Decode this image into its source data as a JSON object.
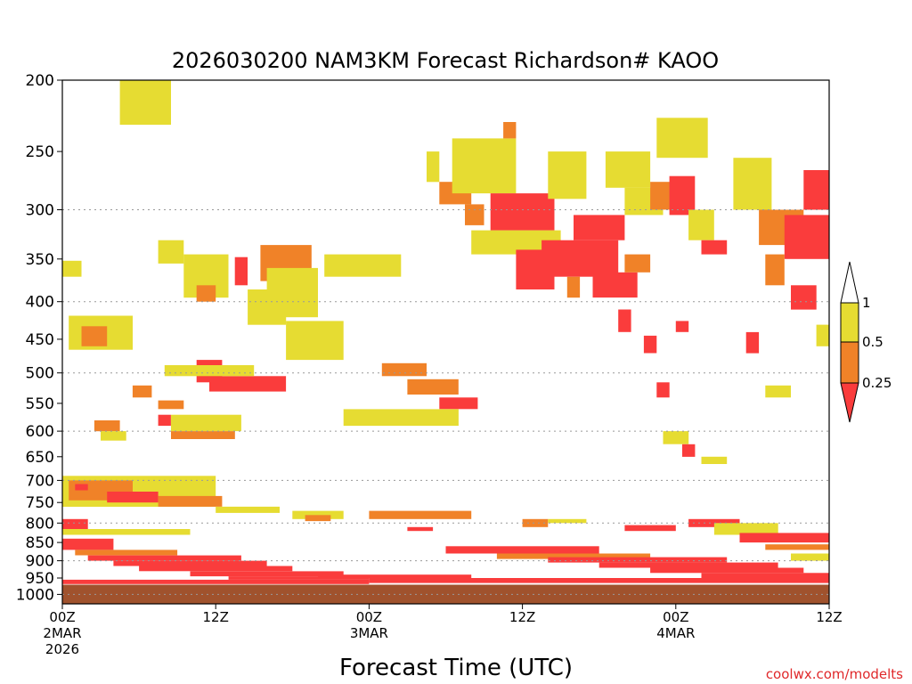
{
  "chart_data": {
    "type": "heatmap",
    "title": "2026030200 NAM3KM Forecast Richardson# KAOO",
    "xlabel": "Forecast Time (UTC)",
    "credit": "coolwx.com/modelts",
    "y_axis": {
      "scale": "log",
      "range": [
        1030,
        200
      ],
      "ticks": [
        "200",
        "250",
        "300",
        "350",
        "400",
        "450",
        "500",
        "550",
        "600",
        "650",
        "700",
        "750",
        "800",
        "850",
        "900",
        "950",
        "1000"
      ],
      "gridlines": [
        300,
        400,
        500,
        600,
        700,
        800,
        900,
        1000
      ]
    },
    "x_axis": {
      "range_hours": [
        0,
        60
      ],
      "ticks": [
        {
          "h": 0,
          "lines": [
            "00Z",
            "2MAR",
            "2026"
          ]
        },
        {
          "h": 12,
          "lines": [
            "12Z"
          ]
        },
        {
          "h": 24,
          "lines": [
            "00Z",
            "3MAR"
          ]
        },
        {
          "h": 36,
          "lines": [
            "12Z"
          ]
        },
        {
          "h": 48,
          "lines": [
            "00Z",
            "4MAR"
          ]
        },
        {
          "h": 60,
          "lines": [
            "12Z"
          ]
        }
      ]
    },
    "legend": {
      "placement": "right",
      "labels": [
        "1",
        "0.5",
        "0.25"
      ],
      "bins": [
        {
          "range": "0.5-1",
          "color": "#e6dc32"
        },
        {
          "range": "0.25-0.5",
          "color": "#f08228"
        },
        {
          "range": "<0.25",
          "color": "#fa3c3c"
        }
      ]
    },
    "colors": {
      "ge1": "#ffffff",
      "y": "#e6dc32",
      "o": "#f08228",
      "r": "#fa3c3c",
      "ground": "#a0522d"
    },
    "surface_pressure": 970,
    "cells_note": "cells: [hour_start, hour_end, p_top, p_bottom, class] — approximate representative regions",
    "cells": [
      [
        4.5,
        8.5,
        200,
        230,
        "y"
      ],
      [
        0,
        1.5,
        352,
        370,
        "y"
      ],
      [
        0.5,
        5.5,
        418,
        465,
        "y"
      ],
      [
        1.5,
        3.5,
        432,
        460,
        "o"
      ],
      [
        7.5,
        9.5,
        330,
        355,
        "y"
      ],
      [
        9.5,
        13,
        345,
        395,
        "y"
      ],
      [
        10.5,
        12,
        380,
        400,
        "o"
      ],
      [
        13.5,
        14.5,
        348,
        380,
        "r"
      ],
      [
        15.5,
        19.5,
        335,
        375,
        "o"
      ],
      [
        16,
        20,
        360,
        420,
        "y"
      ],
      [
        14.5,
        17.5,
        385,
        430,
        "y"
      ],
      [
        10.5,
        12.5,
        480,
        515,
        "r"
      ],
      [
        11.5,
        17.5,
        505,
        530,
        "r"
      ],
      [
        8,
        15,
        488,
        505,
        "y"
      ],
      [
        17.5,
        22,
        425,
        480,
        "y"
      ],
      [
        20.5,
        26.5,
        345,
        370,
        "y"
      ],
      [
        25,
        28.5,
        485,
        505,
        "o"
      ],
      [
        27,
        31,
        510,
        535,
        "o"
      ],
      [
        29.5,
        32.5,
        540,
        560,
        "r"
      ],
      [
        27.5,
        29,
        565,
        580,
        "r"
      ],
      [
        22,
        31,
        560,
        590,
        "y"
      ],
      [
        5.5,
        7,
        520,
        540,
        "o"
      ],
      [
        7.5,
        9.5,
        545,
        560,
        "o"
      ],
      [
        7.5,
        8.5,
        570,
        590,
        "r"
      ],
      [
        8.5,
        14,
        570,
        600,
        "y"
      ],
      [
        8.5,
        13.5,
        600,
        615,
        "o"
      ],
      [
        2.5,
        4.5,
        580,
        600,
        "o"
      ],
      [
        3,
        5,
        600,
        618,
        "y"
      ],
      [
        28.5,
        29.5,
        250,
        275,
        "y"
      ],
      [
        29.5,
        32,
        275,
        295,
        "o"
      ],
      [
        30.5,
        35.5,
        240,
        285,
        "y"
      ],
      [
        31.5,
        33,
        295,
        315,
        "o"
      ],
      [
        33.5,
        38.5,
        285,
        320,
        "r"
      ],
      [
        32,
        39,
        320,
        345,
        "y"
      ],
      [
        35.5,
        38.5,
        340,
        385,
        "r"
      ],
      [
        37.5,
        43.5,
        330,
        370,
        "r"
      ],
      [
        40,
        44,
        305,
        330,
        "r"
      ],
      [
        38,
        41,
        250,
        290,
        "y"
      ],
      [
        34.5,
        35.5,
        228,
        240,
        "o"
      ],
      [
        39.5,
        40.5,
        370,
        395,
        "o"
      ],
      [
        41.5,
        45,
        365,
        395,
        "r"
      ],
      [
        44,
        46,
        345,
        365,
        "o"
      ],
      [
        42.5,
        46,
        250,
        280,
        "y"
      ],
      [
        44,
        47,
        280,
        305,
        "y"
      ],
      [
        46,
        48,
        275,
        300,
        "o"
      ],
      [
        47.5,
        49.5,
        270,
        305,
        "r"
      ],
      [
        46.5,
        50.5,
        225,
        255,
        "y"
      ],
      [
        49,
        51,
        300,
        330,
        "y"
      ],
      [
        50,
        52,
        330,
        345,
        "r"
      ],
      [
        52.5,
        55.5,
        255,
        300,
        "y"
      ],
      [
        54.5,
        58,
        300,
        335,
        "o"
      ],
      [
        56.5,
        60,
        305,
        350,
        "r"
      ],
      [
        58,
        60,
        265,
        300,
        "r"
      ],
      [
        55,
        56.5,
        345,
        380,
        "o"
      ],
      [
        57,
        59,
        380,
        410,
        "r"
      ],
      [
        59,
        60,
        430,
        460,
        "y"
      ],
      [
        43.5,
        44.5,
        410,
        440,
        "r"
      ],
      [
        45.5,
        46.5,
        445,
        470,
        "r"
      ],
      [
        48,
        49,
        425,
        440,
        "r"
      ],
      [
        53.5,
        54.5,
        440,
        470,
        "r"
      ],
      [
        55,
        57,
        520,
        540,
        "y"
      ],
      [
        46.5,
        47.5,
        515,
        540,
        "r"
      ],
      [
        47,
        49,
        600,
        625,
        "y"
      ],
      [
        48.5,
        49.5,
        625,
        650,
        "r"
      ],
      [
        50,
        52,
        650,
        665,
        "y"
      ],
      [
        0,
        12,
        690,
        760,
        "y"
      ],
      [
        0.5,
        5.5,
        700,
        745,
        "o"
      ],
      [
        3.5,
        7.5,
        725,
        750,
        "r"
      ],
      [
        1,
        2,
        708,
        722,
        "r"
      ],
      [
        7.5,
        12.5,
        735,
        760,
        "o"
      ],
      [
        12,
        17,
        760,
        775,
        "y"
      ],
      [
        18,
        22,
        770,
        790,
        "y"
      ],
      [
        19,
        21,
        780,
        795,
        "o"
      ],
      [
        0,
        2,
        790,
        815,
        "r"
      ],
      [
        0,
        10,
        815,
        830,
        "y"
      ],
      [
        0,
        4,
        840,
        870,
        "r"
      ],
      [
        1,
        9,
        870,
        885,
        "o"
      ],
      [
        2,
        14,
        885,
        900,
        "r"
      ],
      [
        4,
        16,
        900,
        915,
        "r"
      ],
      [
        6,
        18,
        915,
        930,
        "r"
      ],
      [
        10,
        22,
        930,
        945,
        "r"
      ],
      [
        13,
        24,
        945,
        955,
        "r"
      ],
      [
        24,
        32,
        770,
        790,
        "o"
      ],
      [
        27,
        29,
        810,
        820,
        "r"
      ],
      [
        36,
        38,
        790,
        810,
        "o"
      ],
      [
        38,
        41,
        790,
        800,
        "y"
      ],
      [
        44,
        48,
        805,
        820,
        "r"
      ],
      [
        49,
        53,
        790,
        810,
        "r"
      ],
      [
        51,
        56,
        800,
        830,
        "y"
      ],
      [
        53,
        60,
        825,
        850,
        "r"
      ],
      [
        55,
        60,
        855,
        870,
        "o"
      ],
      [
        30,
        42,
        860,
        880,
        "r"
      ],
      [
        34,
        46,
        880,
        895,
        "o"
      ],
      [
        38,
        52,
        890,
        905,
        "r"
      ],
      [
        42,
        56,
        905,
        920,
        "r"
      ],
      [
        46,
        58,
        920,
        935,
        "r"
      ],
      [
        50,
        60,
        935,
        950,
        "r"
      ],
      [
        24,
        60,
        950,
        965,
        "r"
      ],
      [
        0,
        24,
        955,
        968,
        "r"
      ],
      [
        20,
        32,
        940,
        950,
        "r"
      ],
      [
        57,
        60,
        880,
        900,
        "y"
      ]
    ]
  }
}
